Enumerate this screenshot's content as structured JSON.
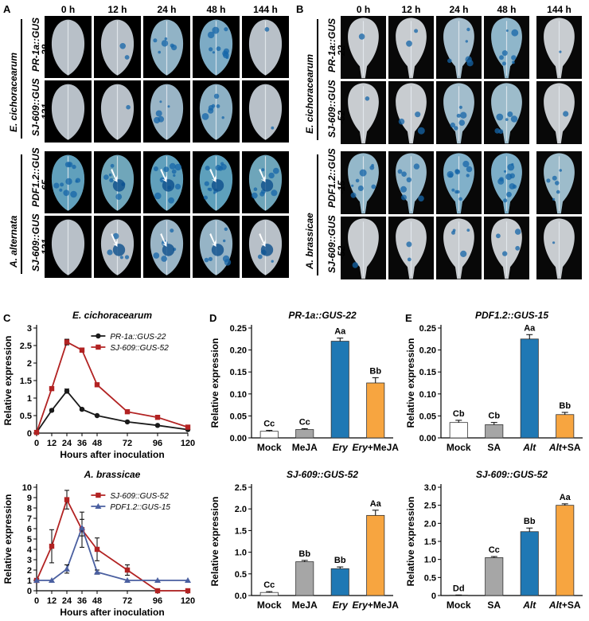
{
  "panelA": {
    "letter": "A",
    "time_labels": [
      "0 h",
      "12 h",
      "24 h",
      "48 h",
      "144 h"
    ],
    "pathogens": [
      "E. cichoracearum",
      "A. alternata"
    ],
    "row_labels": [
      {
        "line1": "PR-1a::GUS",
        "line2": "-28"
      },
      {
        "line1": "SJ-609::GUS",
        "line2": "-131"
      },
      {
        "line1": "PDF1.2::GUS",
        "line2": "-65"
      },
      {
        "line1": "SJ-609::GUS",
        "line2": "-131"
      }
    ]
  },
  "panelB": {
    "letter": "B",
    "time_labels": [
      "0 h",
      "12 h",
      "24 h",
      "48 h",
      "144 h"
    ],
    "pathogens": [
      "E. cichoracearum",
      "A. brassicae"
    ],
    "row_labels": [
      {
        "line1": "PR-1a::GUS",
        "line2": "-22"
      },
      {
        "line1": "SJ-609::GUS",
        "line2": "-52"
      },
      {
        "line1": "PDF1.2::GUS",
        "line2": "-15"
      },
      {
        "line1": "SJ-609::GUS",
        "line2": "-52"
      }
    ]
  },
  "panelC": {
    "letter": "C"
  },
  "panelD": {
    "letter": "D"
  },
  "panelE": {
    "letter": "E"
  },
  "colors": {
    "red": "#b22222",
    "black": "#1a1a1a",
    "blue": "#4a5fa0",
    "bar_white": "#ffffff",
    "bar_grey": "#a6a6a6",
    "bar_blue": "#1f78b4",
    "bar_orange": "#f7a540"
  },
  "chart_data": [
    {
      "type": "line",
      "title": "E. cichoracearum",
      "xlabel": "Hours after inoculation",
      "ylabel": "Relative expression",
      "x": [
        0,
        12,
        24,
        36,
        48,
        72,
        96,
        120
      ],
      "xlim": [
        0,
        120
      ],
      "ylim": [
        0,
        3
      ],
      "yticks": [
        0,
        0.5,
        1,
        1.5,
        2,
        2.5,
        3
      ],
      "ytick_labels": [
        "0",
        "0.5",
        "1",
        "1.5",
        "2",
        "2.5",
        "3"
      ],
      "legend_position": "top-right",
      "series": [
        {
          "name": "PR-1a::GUS-22",
          "color": "#1a1a1a",
          "marker": "circle",
          "values": [
            0.02,
            0.65,
            1.2,
            0.68,
            0.5,
            0.32,
            0.22,
            0.1
          ],
          "errors": [
            0,
            0.03,
            0.06,
            0.03,
            0.02,
            0.02,
            0.02,
            0.01
          ]
        },
        {
          "name": "SJ-609::GUS-52",
          "color": "#b22222",
          "marker": "square",
          "values": [
            0.02,
            1.27,
            2.6,
            2.37,
            1.38,
            0.61,
            0.45,
            0.17
          ],
          "errors": [
            0,
            0.03,
            0.08,
            0.06,
            0.04,
            0.03,
            0.02,
            0.02
          ]
        }
      ]
    },
    {
      "type": "line",
      "title": "A. brassicae",
      "xlabel": "Hours after inoculation",
      "ylabel": "Relative expression",
      "x": [
        0,
        12,
        24,
        36,
        48,
        72,
        96,
        120
      ],
      "xlim": [
        0,
        120
      ],
      "ylim": [
        0,
        10
      ],
      "yticks": [
        0,
        1,
        2,
        3,
        4,
        5,
        6,
        7,
        8,
        9,
        10
      ],
      "ytick_labels": [
        "0",
        "1",
        "2",
        "3",
        "4",
        "5",
        "6",
        "7",
        "8",
        "9",
        "10"
      ],
      "legend_position": "top-right",
      "series": [
        {
          "name": "SJ-609::GUS-52",
          "color": "#b22222",
          "marker": "square",
          "values": [
            1.0,
            4.3,
            8.8,
            5.9,
            4.0,
            2.0,
            0.0,
            0.0
          ],
          "errors": [
            0,
            1.6,
            0.9,
            1.7,
            1.1,
            0.5,
            0,
            0
          ]
        },
        {
          "name": "PDF1.2::GUS-15",
          "color": "#4a5fa0",
          "marker": "triangle",
          "values": [
            1.0,
            1.0,
            2.1,
            6.1,
            1.8,
            1.0,
            1.0,
            1.0
          ],
          "errors": [
            0,
            0,
            0.4,
            0.8,
            0.2,
            0,
            0,
            0
          ]
        }
      ]
    },
    {
      "type": "bar",
      "title": "PR-1a::GUS-22",
      "ylabel": "Relative expression",
      "categories": [
        "Mock",
        "MeJA",
        "Ery",
        "Ery+MeJA"
      ],
      "category_italic_prefix": [
        "",
        "",
        "Ery",
        "Ery"
      ],
      "values": [
        0.015,
        0.019,
        0.22,
        0.125
      ],
      "errors": [
        0.002,
        0.002,
        0.007,
        0.012
      ],
      "letters": [
        "Cc",
        "Cc",
        "Aa",
        "Bb"
      ],
      "ylim": [
        0,
        0.25
      ],
      "yticks": [
        0,
        0.05,
        0.1,
        0.15,
        0.2,
        0.25
      ],
      "ytick_labels": [
        "0.00",
        "0.05",
        "0.10",
        "0.15",
        "0.20",
        "0.25"
      ]
    },
    {
      "type": "bar",
      "title": "PDF1.2::GUS-15",
      "ylabel": "Relative expression",
      "categories": [
        "Mock",
        "SA",
        "Alt",
        "Alt+SA"
      ],
      "category_italic_prefix": [
        "",
        "",
        "Alt",
        "Alt"
      ],
      "values": [
        0.035,
        0.03,
        0.225,
        0.053
      ],
      "errors": [
        0.005,
        0.005,
        0.01,
        0.005
      ],
      "letters": [
        "Cb",
        "Cb",
        "Aa",
        "Bb"
      ],
      "ylim": [
        0,
        0.25
      ],
      "yticks": [
        0,
        0.05,
        0.1,
        0.15,
        0.2,
        0.25
      ],
      "ytick_labels": [
        "0.00",
        "0.05",
        "0.10",
        "0.15",
        "0.20",
        "0.25"
      ]
    },
    {
      "type": "bar",
      "title": "SJ-609::GUS-52",
      "ylabel": "Relative expression",
      "categories": [
        "Mock",
        "MeJA",
        "Ery",
        "Ery+MeJA"
      ],
      "category_italic_prefix": [
        "",
        "",
        "Ery",
        "Ery"
      ],
      "values": [
        0.07,
        0.78,
        0.62,
        1.85
      ],
      "errors": [
        0.02,
        0.03,
        0.04,
        0.12
      ],
      "letters": [
        "Cc",
        "Bb",
        "Bb",
        "Aa"
      ],
      "ylim": [
        0,
        2.5
      ],
      "yticks": [
        0,
        0.5,
        1,
        1.5,
        2,
        2.5
      ],
      "ytick_labels": [
        "0.0",
        "0.5",
        "1.0",
        "1.5",
        "2.0",
        "2.5"
      ]
    },
    {
      "type": "bar",
      "title": "SJ-609::GUS-52",
      "ylabel": "Relative expression",
      "categories": [
        "Mock",
        "SA",
        "Alt",
        "Alt+SA"
      ],
      "category_italic_prefix": [
        "",
        "",
        "Alt",
        "Alt"
      ],
      "values": [
        0.01,
        1.05,
        1.77,
        2.5
      ],
      "errors": [
        0.005,
        0.03,
        0.1,
        0.04
      ],
      "letters": [
        "Dd",
        "Cc",
        "Bb",
        "Aa"
      ],
      "ylim": [
        0,
        3
      ],
      "yticks": [
        0,
        0.5,
        1,
        1.5,
        2,
        2.5,
        3
      ],
      "ytick_labels": [
        "0",
        "0.5",
        "1.0",
        "1.5",
        "2.0",
        "2.5",
        "3.0"
      ]
    }
  ]
}
